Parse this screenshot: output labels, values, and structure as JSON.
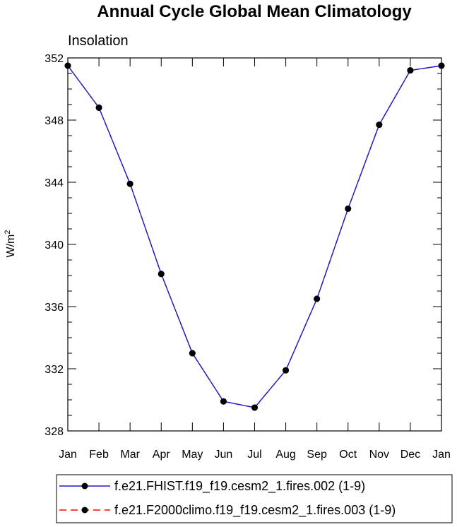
{
  "chart_data": {
    "type": "line",
    "title": "Annual Cycle Global Mean Climatology",
    "subtitle": "Insolation",
    "xlabel": "",
    "ylabel": "W/m",
    "ylabel_superscript": "2",
    "categories": [
      "Jan",
      "Feb",
      "Mar",
      "Apr",
      "May",
      "Jun",
      "Jul",
      "Aug",
      "Sep",
      "Oct",
      "Nov",
      "Dec",
      "Jan"
    ],
    "ylim": [
      328,
      352
    ],
    "yticks": [
      328,
      332,
      336,
      340,
      344,
      348,
      352
    ],
    "ytick_labels": [
      "328",
      "332",
      "336",
      "340",
      "344",
      "348",
      "352"
    ],
    "grid": false,
    "legend_position": "bottom",
    "series": [
      {
        "name": "f.e21.FHIST.f19_f19.cesm2_1.fires.002 (1-9)",
        "color": "#1a1ac8",
        "line_style": "solid",
        "marker": "filled-circle",
        "values": [
          351.5,
          348.8,
          343.9,
          338.1,
          333.0,
          329.9,
          329.5,
          331.9,
          336.5,
          342.3,
          347.7,
          351.2,
          351.5
        ]
      },
      {
        "name": "f.e21.F2000climo.f19_f19.cesm2_1.fires.003 (1-9)",
        "color": "#ff0000",
        "line_style": "dashed",
        "marker": "filled-circle",
        "values": [
          351.5,
          348.8,
          343.9,
          338.1,
          333.0,
          329.9,
          329.5,
          331.9,
          336.5,
          342.3,
          347.7,
          351.2,
          351.5
        ]
      }
    ]
  }
}
